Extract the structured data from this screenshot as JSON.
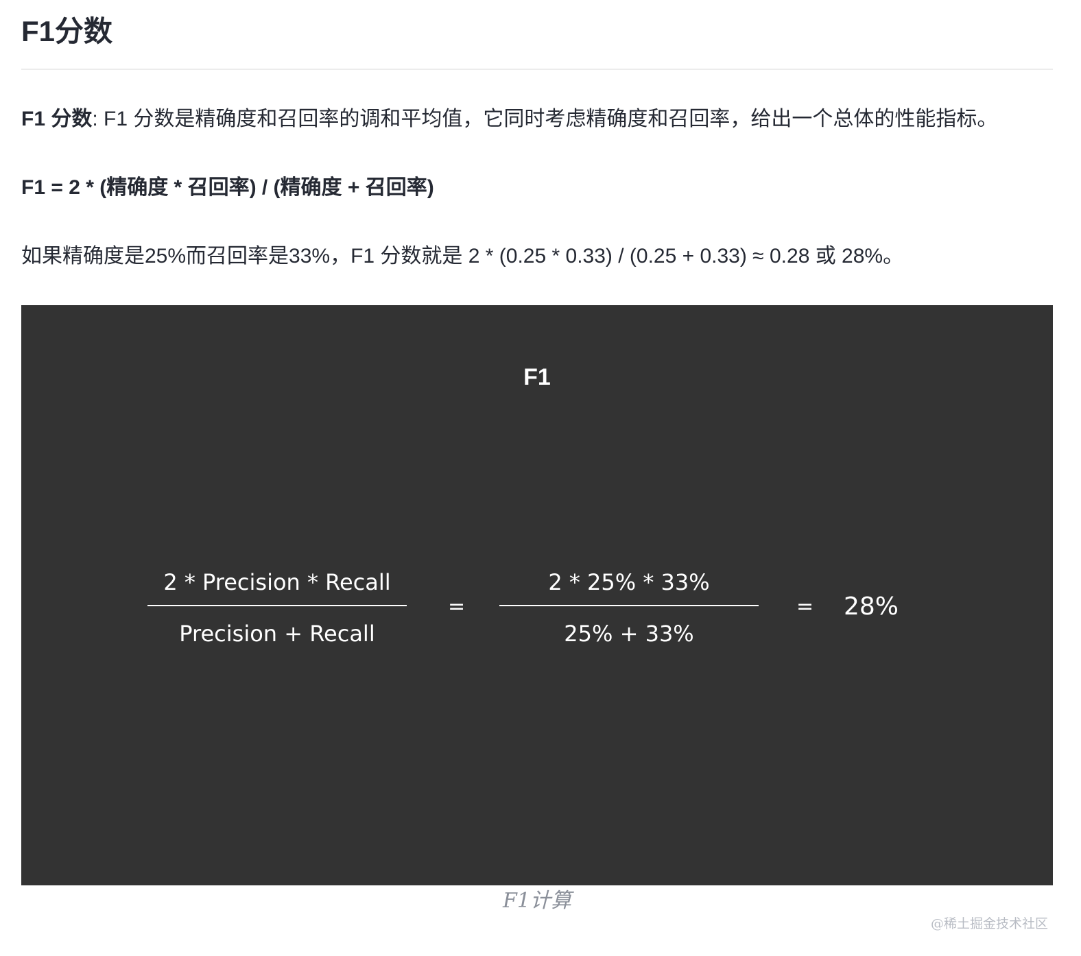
{
  "heading": "F1分数",
  "paragraph1": {
    "term": "F1 分数",
    "text": ": F1 分数是精确度和召回率的调和平均值，它同时考虑精确度和召回率，给出一个总体的性能指标。"
  },
  "formula_text": "F1 = 2 * (精确度 * 召回率) / (精确度 + 召回率)",
  "example_text": "如果精确度是25%而召回率是33%，F1 分数就是 2 * (0.25 * 0.33) / (0.25 + 0.33) ≈ 0.28 或 28%。",
  "figure": {
    "background_color": "#333333",
    "title": "F1",
    "fraction1": {
      "numerator": "2 * Precision * Recall",
      "denominator": "Precision + Recall"
    },
    "equals1": "=",
    "fraction2": {
      "numerator": "2 * 25% * 33%",
      "denominator": "25% + 33%"
    },
    "equals2": "=",
    "result": "28%",
    "caption": "F1计算"
  },
  "watermark": "@稀土掘金技术社区"
}
